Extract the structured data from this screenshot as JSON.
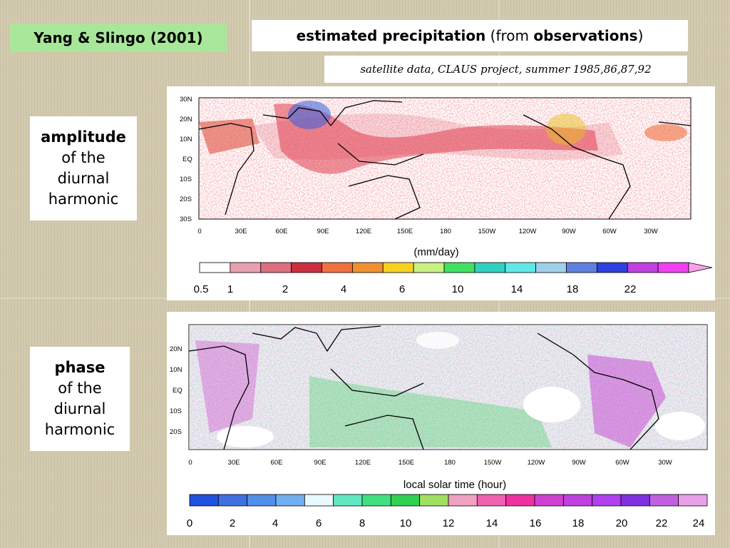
{
  "header": {
    "author": "Yang & Slingo (2001)",
    "title_bold_1": "estimated precipitation",
    "title_plain_1": " (from ",
    "title_bold_2": "observations",
    "title_plain_2": ")",
    "source": "satellite data, CLAUS project, summer 1985,86,87,92"
  },
  "amplitude_label": {
    "bold": "amplitude",
    "line2": "of the",
    "line3": "diurnal",
    "line4": "harmonic"
  },
  "phase_label": {
    "bold": "phase",
    "line2": "of the",
    "line3": "diurnal",
    "line4": "harmonic"
  },
  "amplitude_map": {
    "lat_ticks": [
      "30N",
      "20N",
      "10N",
      "EQ",
      "10S",
      "20S",
      "30S"
    ],
    "lon_ticks": [
      "0",
      "30E",
      "60E",
      "90E",
      "120E",
      "150E",
      "180",
      "150W",
      "120W",
      "90W",
      "60W",
      "30W"
    ],
    "colorbar_unit": "(mm/day)",
    "colorbar_labels": [
      "0.5",
      "1",
      "2",
      "4",
      "6",
      "10",
      "14",
      "18",
      "22"
    ],
    "colorbar_colors": [
      "#ffffff",
      "#e8a0b0",
      "#dc7080",
      "#cc3040",
      "#f07040",
      "#f09030",
      "#f8d020",
      "#c8f080",
      "#40e060",
      "#30d0c0",
      "#60e8e8",
      "#a0d0e8",
      "#6080e0",
      "#3040e0",
      "#c040e0",
      "#f040f0"
    ]
  },
  "phase_map": {
    "lat_ticks": [
      "20N",
      "10N",
      "EQ",
      "10S",
      "20S"
    ],
    "lon_ticks": [
      "0",
      "30E",
      "60E",
      "90E",
      "120E",
      "150E",
      "180",
      "150W",
      "120W",
      "90W",
      "60W",
      "30W"
    ],
    "colorbar_unit": "local solar time (hour)",
    "colorbar_labels": [
      "0",
      "2",
      "4",
      "6",
      "8",
      "10",
      "12",
      "14",
      "16",
      "18",
      "20",
      "22",
      "24"
    ],
    "colorbar_colors": [
      "#2050e0",
      "#4070e0",
      "#5090e8",
      "#70b0f0",
      "#e8f8ff",
      "#60e8c0",
      "#40e080",
      "#30d050",
      "#a0e060",
      "#f0a0c0",
      "#f060b0",
      "#f030a0",
      "#d040d0",
      "#c040e0",
      "#b040f0",
      "#8030e0",
      "#c060e0",
      "#e8a0e8"
    ]
  }
}
